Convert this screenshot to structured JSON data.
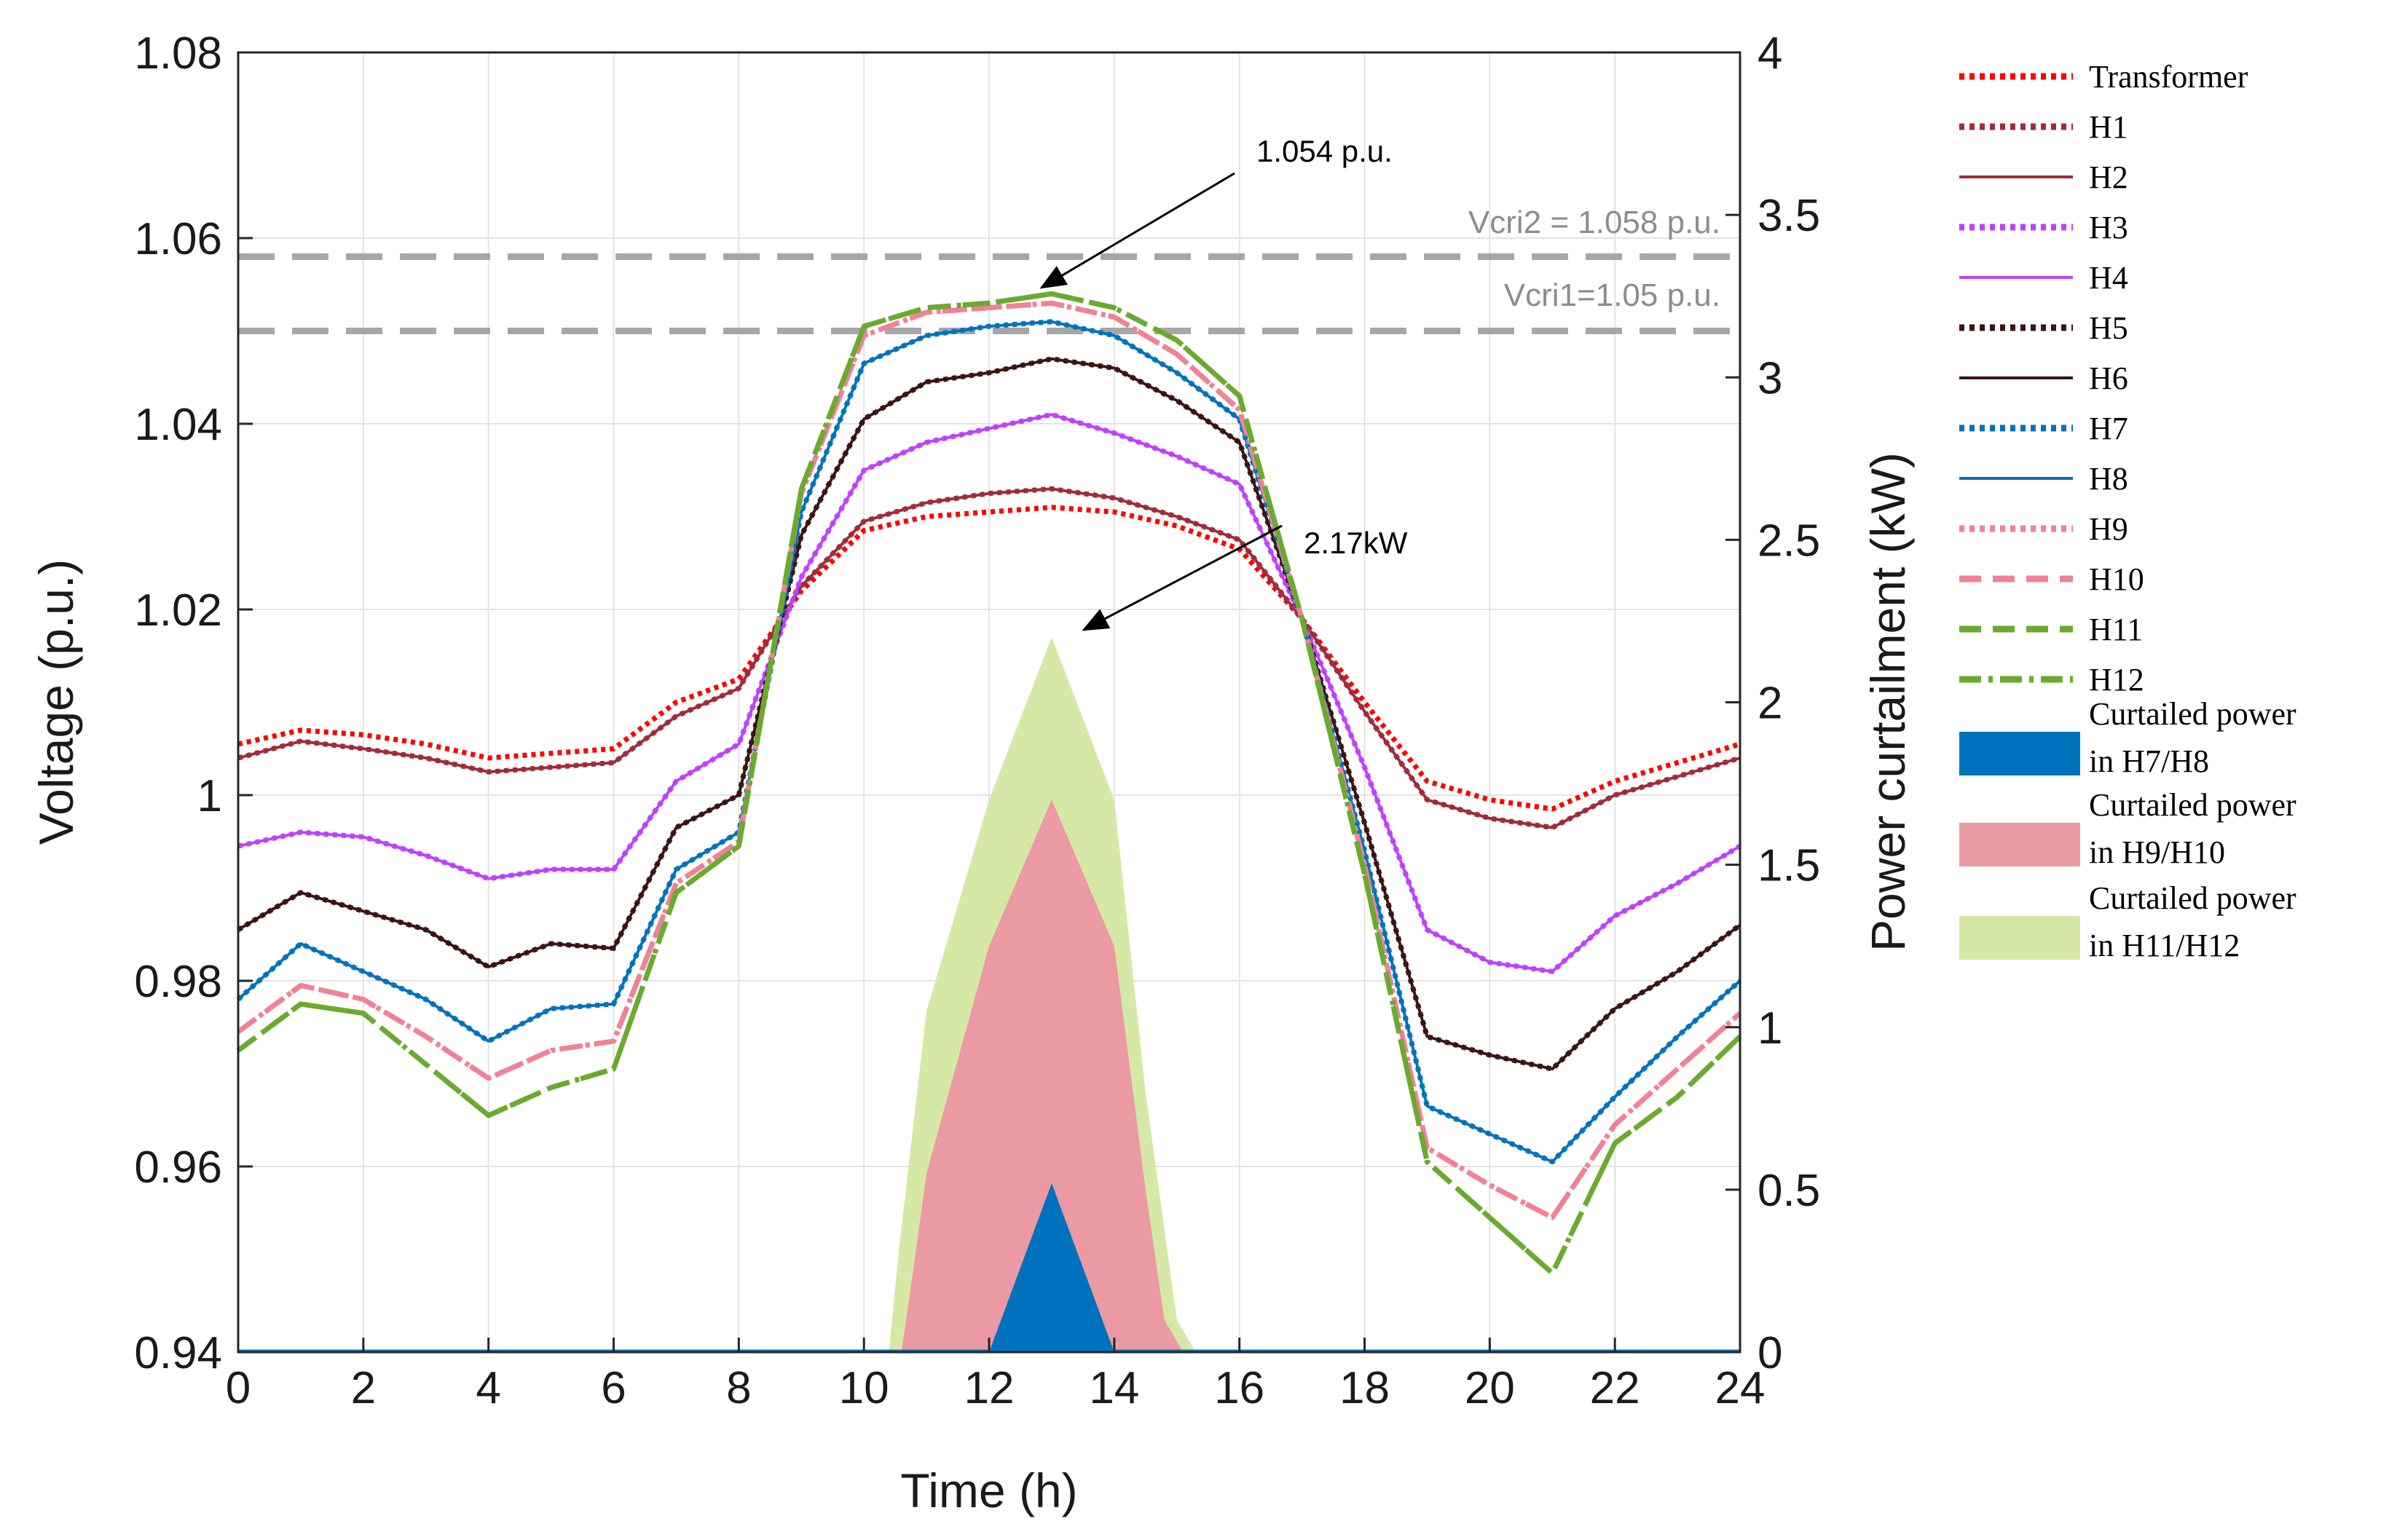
{
  "chart_data": {
    "type": "line",
    "xlabel": "Time (h)",
    "ylabel": "Voltage (p.u.)",
    "y2label": "Power curtailment (kW)",
    "xlim": [
      0,
      24
    ],
    "ylim": [
      0.94,
      1.08
    ],
    "y2lim": [
      0,
      4
    ],
    "grid": true,
    "x_ticks": [
      "0",
      "2",
      "4",
      "6",
      "8",
      "10",
      "12",
      "14",
      "16",
      "18",
      "20",
      "22",
      "24"
    ],
    "y_ticks": [
      "0.94",
      "0.96",
      "0.98",
      "1",
      "1.02",
      "1.04",
      "1.06",
      "1.08"
    ],
    "y2_ticks": [
      "0",
      "0.5",
      "1",
      "1.5",
      "2",
      "2.5",
      "3",
      "3.5",
      "4"
    ],
    "x": [
      0,
      1,
      2,
      3,
      4,
      5,
      6,
      7,
      8,
      9,
      10,
      11,
      12,
      13,
      14,
      15,
      16,
      17,
      18,
      19,
      20,
      21,
      22,
      23,
      24
    ],
    "voltage_series": [
      {
        "name": "Transformer",
        "color": "#ff0000",
        "style": "dotted",
        "values": [
          1.0055,
          1.007,
          1.0065,
          1.0055,
          1.004,
          1.0045,
          1.005,
          1.01,
          1.0125,
          1.022,
          1.0285,
          1.03,
          1.0305,
          1.031,
          1.0305,
          1.029,
          1.0265,
          1.019,
          1.01,
          1.0015,
          0.9995,
          0.9985,
          1.0015,
          1.0035,
          1.0055
        ]
      },
      {
        "name": "H1",
        "color": "#a02b3c",
        "style": "dotted",
        "values": [
          1.004,
          1.0058,
          1.005,
          1.004,
          1.0025,
          1.003,
          1.0035,
          1.0085,
          1.0115,
          1.0225,
          1.0295,
          1.0315,
          1.0325,
          1.033,
          1.032,
          1.03,
          1.0275,
          1.019,
          1.009,
          0.9995,
          0.9975,
          0.9965,
          1.0,
          1.002,
          1.004
        ]
      },
      {
        "name": "H2",
        "color": "#a02b3c",
        "style": "solid",
        "values": [
          1.004,
          1.0058,
          1.005,
          1.004,
          1.0025,
          1.003,
          1.0035,
          1.0085,
          1.0115,
          1.0225,
          1.0295,
          1.0315,
          1.0325,
          1.033,
          1.032,
          1.03,
          1.0275,
          1.019,
          1.009,
          0.9995,
          0.9975,
          0.9965,
          1.0,
          1.002,
          1.004
        ]
      },
      {
        "name": "H3",
        "color": "#bf40ff",
        "style": "dotted",
        "values": [
          0.9945,
          0.996,
          0.9955,
          0.9935,
          0.991,
          0.992,
          0.992,
          1.0015,
          1.0055,
          1.0235,
          1.035,
          1.038,
          1.0395,
          1.041,
          1.039,
          1.0365,
          1.0335,
          1.019,
          1.003,
          0.9855,
          0.982,
          0.981,
          0.987,
          0.9905,
          0.9945
        ]
      },
      {
        "name": "H4",
        "color": "#bf40ff",
        "style": "solid",
        "values": [
          0.9945,
          0.996,
          0.9955,
          0.9935,
          0.991,
          0.992,
          0.992,
          1.0015,
          1.0055,
          1.0235,
          1.035,
          1.038,
          1.0395,
          1.041,
          1.039,
          1.0365,
          1.0335,
          1.019,
          1.003,
          0.9855,
          0.982,
          0.981,
          0.987,
          0.9905,
          0.9945
        ]
      },
      {
        "name": "H5",
        "color": "#3b1414",
        "style": "dotted",
        "values": [
          0.9855,
          0.9895,
          0.9875,
          0.9855,
          0.9815,
          0.984,
          0.9835,
          0.9965,
          1.0,
          1.028,
          1.0405,
          1.0445,
          1.0455,
          1.047,
          1.046,
          1.0425,
          1.038,
          1.019,
          0.997,
          0.974,
          0.972,
          0.9705,
          0.977,
          0.981,
          0.986
        ]
      },
      {
        "name": "H6",
        "color": "#3b1414",
        "style": "solid",
        "values": [
          0.9855,
          0.9895,
          0.9875,
          0.9855,
          0.9815,
          0.984,
          0.9835,
          0.9965,
          1.0,
          1.028,
          1.0405,
          1.0445,
          1.0455,
          1.047,
          1.046,
          1.0425,
          1.038,
          1.019,
          0.997,
          0.974,
          0.972,
          0.9705,
          0.977,
          0.981,
          0.986
        ]
      },
      {
        "name": "H7",
        "color": "#0072bd",
        "style": "dotted",
        "values": [
          0.978,
          0.984,
          0.981,
          0.978,
          0.9735,
          0.977,
          0.9775,
          0.992,
          0.996,
          1.0305,
          1.0465,
          1.0495,
          1.0505,
          1.051,
          1.0495,
          1.0455,
          1.0405,
          1.019,
          0.994,
          0.9665,
          0.9635,
          0.9605,
          0.9675,
          0.974,
          0.98
        ]
      },
      {
        "name": "H8",
        "color": "#0072bd",
        "style": "solid",
        "values": [
          0.978,
          0.984,
          0.981,
          0.978,
          0.9735,
          0.977,
          0.9775,
          0.992,
          0.996,
          1.0305,
          1.0465,
          1.0495,
          1.0505,
          1.051,
          1.0495,
          1.0455,
          1.0405,
          1.019,
          0.994,
          0.9665,
          0.9635,
          0.9605,
          0.9675,
          0.974,
          0.98
        ]
      },
      {
        "name": "H9",
        "color": "#f28096",
        "style": "dotted",
        "values": [
          0.9745,
          0.9795,
          0.978,
          0.974,
          0.9695,
          0.9725,
          0.9735,
          0.9905,
          0.995,
          1.0325,
          1.0495,
          1.052,
          1.0525,
          1.053,
          1.0515,
          1.0475,
          1.0415,
          1.019,
          0.9925,
          0.962,
          0.958,
          0.9545,
          0.9645,
          0.9705,
          0.9765
        ]
      },
      {
        "name": "H10",
        "color": "#f28096",
        "style": "dashed",
        "values": [
          0.9745,
          0.9795,
          0.978,
          0.974,
          0.9695,
          0.9725,
          0.9735,
          0.9905,
          0.995,
          1.0325,
          1.0495,
          1.052,
          1.0525,
          1.053,
          1.0515,
          1.0475,
          1.0415,
          1.019,
          0.9925,
          0.962,
          0.958,
          0.9545,
          0.9645,
          0.9705,
          0.9765
        ]
      },
      {
        "name": "H11",
        "color": "#6aaa2e",
        "style": "dashed",
        "values": [
          0.9725,
          0.9775,
          0.9765,
          0.971,
          0.9655,
          0.9685,
          0.9705,
          0.9895,
          0.9945,
          1.033,
          1.0505,
          1.0525,
          1.053,
          1.054,
          1.0525,
          1.049,
          1.043,
          1.019,
          0.9915,
          0.9605,
          0.9545,
          0.9485,
          0.9625,
          0.9675,
          0.974
        ]
      },
      {
        "name": "H12",
        "color": "#6aaa2e",
        "style": "dashdot",
        "values": [
          0.9725,
          0.9775,
          0.9765,
          0.971,
          0.9655,
          0.9685,
          0.9705,
          0.9895,
          0.9945,
          1.033,
          1.0505,
          1.0525,
          1.053,
          1.054,
          1.0525,
          1.049,
          1.043,
          1.019,
          0.9915,
          0.9605,
          0.9545,
          0.9485,
          0.9625,
          0.9675,
          0.974
        ]
      }
    ],
    "curtailment_areas": [
      {
        "name": "Curtailed power in H11/H12",
        "label_lines": [
          "Curtailed power",
          " in H11/H12"
        ],
        "color": "#d6e8a6",
        "points": [
          [
            10.4,
            0
          ],
          [
            10.55,
            0.3
          ],
          [
            11,
            1.05
          ],
          [
            12,
            1.7
          ],
          [
            13,
            2.2
          ],
          [
            14,
            1.7
          ],
          [
            14.5,
            0.8
          ],
          [
            15,
            0.1
          ],
          [
            15.3,
            0
          ]
        ]
      },
      {
        "name": "Curtailed power in H9/H10",
        "label_lines": [
          "Curtailed power",
          " in H9/H10"
        ],
        "color": "#eb99a3",
        "points": [
          [
            10.6,
            0
          ],
          [
            10.75,
            0.2
          ],
          [
            11,
            0.55
          ],
          [
            12,
            1.25
          ],
          [
            13,
            1.7
          ],
          [
            14,
            1.25
          ],
          [
            14.5,
            0.5
          ],
          [
            14.8,
            0.1
          ],
          [
            15.1,
            0
          ]
        ]
      },
      {
        "name": "Curtailed power in H7/H8",
        "label_lines": [
          "Curtailed power",
          "in H7/H8"
        ],
        "color": "#0072bd",
        "points": [
          [
            12,
            0
          ],
          [
            13,
            0.52
          ],
          [
            14,
            0
          ],
          [
            14.1,
            0
          ]
        ]
      }
    ],
    "reference_lines": [
      {
        "label": "Vcri2 = 1.058 p.u.",
        "value": 1.058
      },
      {
        "label": "Vcri1=1.05 p.u.",
        "value": 1.05
      }
    ],
    "annotations": [
      {
        "text": "1.054 p.u.",
        "x": 13,
        "y": 1.054
      },
      {
        "text": "2.17kW",
        "x": 13,
        "y2": 2.2
      }
    ],
    "legend_position": "outside-right"
  }
}
